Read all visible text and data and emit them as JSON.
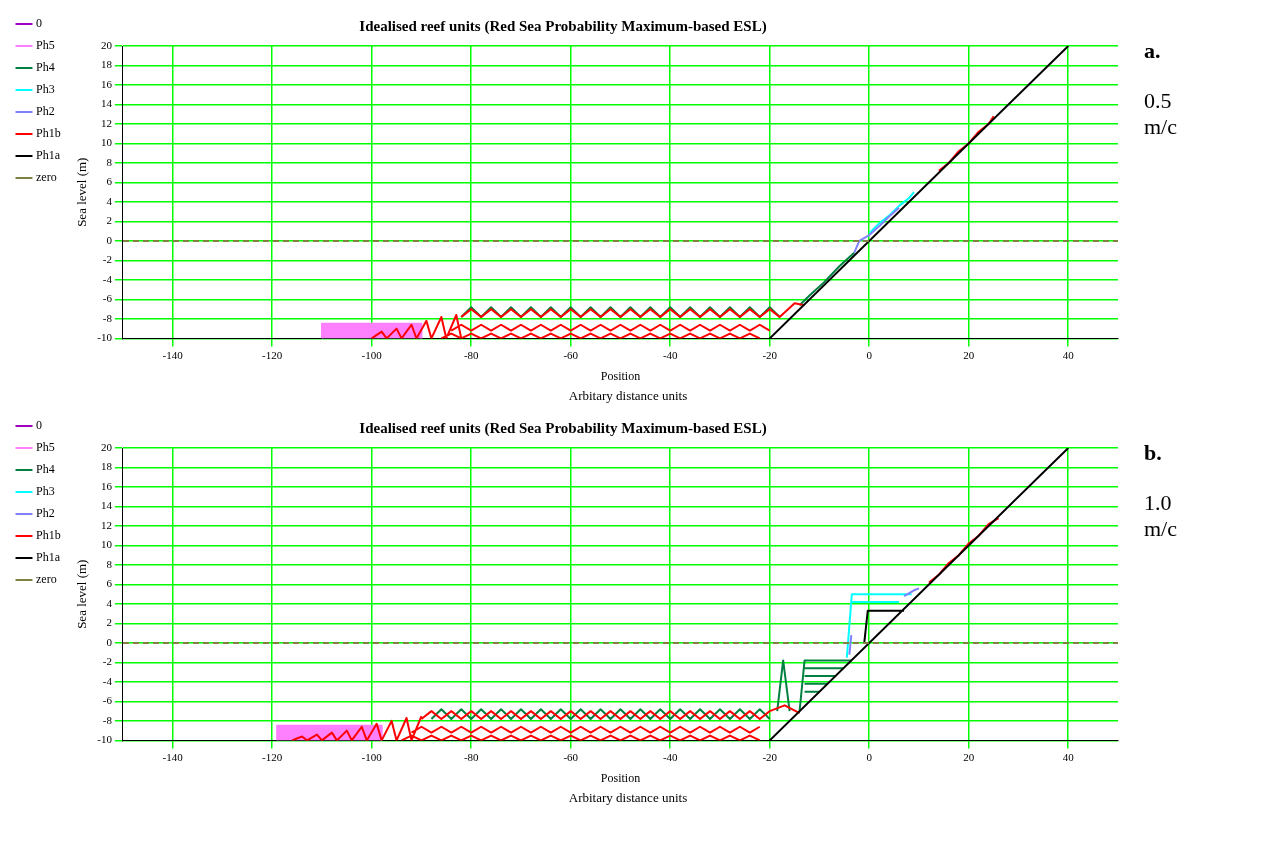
{
  "chart_data": [
    {
      "type": "line",
      "title": "Idealised reef units (Red Sea Probability Maximum-based ESL)",
      "xlabel": "Position",
      "ylabel": "Sea level (m)",
      "annotations": [
        "Arbitary distance units",
        "a.",
        "0.5 m/c"
      ],
      "xlim": [
        -150,
        50
      ],
      "ylim": [
        -10,
        20
      ],
      "xticks": [
        -140,
        -120,
        -100,
        -80,
        -60,
        -40,
        -20,
        0,
        20,
        40
      ],
      "yticks": [
        -10,
        -8,
        -6,
        -4,
        -2,
        0,
        2,
        4,
        6,
        8,
        10,
        12,
        14,
        16,
        18,
        20
      ],
      "grid": true,
      "legend": "left",
      "marker": "none",
      "series": [
        {
          "name": "0",
          "color": "#a000c0",
          "line_style": "dotted"
        },
        {
          "name": "Ph5",
          "type": "area",
          "color": "#ff80ff",
          "x": [
            -110,
            -110,
            -106,
            -102,
            -98,
            -94,
            -90,
            -90
          ],
          "values": [
            -10,
            -8.5,
            -8.5,
            -8.5,
            -8.5,
            -8.5,
            -8.5,
            -10
          ]
        },
        {
          "name": "Ph4",
          "color": "#008040",
          "x": [
            -82,
            -80,
            -78,
            -76,
            -74,
            -72,
            -70,
            -68,
            -66,
            -64,
            -62,
            -60,
            -58,
            -56,
            -54,
            -52,
            -50,
            -48,
            -46,
            -44,
            -42,
            -40,
            -38,
            -36,
            -34,
            -32,
            -30,
            -28,
            -26,
            -24,
            -22,
            -20,
            -18,
            null,
            -14,
            -12,
            -9,
            -6,
            -3
          ],
          "values": [
            -7.8,
            -6.8,
            -7.8,
            -6.8,
            -7.8,
            -6.8,
            -7.8,
            -6.8,
            -7.8,
            -6.8,
            -7.8,
            -6.8,
            -7.8,
            -6.8,
            -7.8,
            -6.8,
            -7.8,
            -6.8,
            -7.8,
            -6.8,
            -7.8,
            -6.8,
            -7.8,
            -6.8,
            -7.8,
            -6.8,
            -7.8,
            -6.8,
            -7.8,
            -6.8,
            -7.8,
            -6.8,
            -7.8,
            null,
            -6.6,
            -5.6,
            -4.2,
            -2.6,
            -1.2
          ]
        },
        {
          "name": "Ph3",
          "color": "#00ffff",
          "x": [
            0,
            2,
            4,
            6,
            8,
            9
          ],
          "values": [
            0.8,
            1.8,
            2.6,
            3.6,
            4.4,
            5
          ]
        },
        {
          "name": "Ph2",
          "color": "#8080ff",
          "x": [
            -3,
            -2,
            0,
            2,
            4,
            6
          ],
          "values": [
            -1.2,
            0,
            0.6,
            1.5,
            2.5,
            3.4
          ]
        },
        {
          "name": "Ph1b",
          "color": "#ff0000",
          "x": [
            -100,
            -98,
            -97,
            -95,
            -94,
            -92,
            -91,
            -89,
            -88,
            -86,
            -85,
            -83,
            -82,
            null,
            -82,
            -80,
            -78,
            -76,
            -74,
            -72,
            -70,
            -68,
            -66,
            -64,
            -62,
            -60,
            -58,
            -56,
            -54,
            -52,
            -50,
            -48,
            -46,
            -44,
            -42,
            -40,
            -38,
            -36,
            -34,
            -32,
            -30,
            -28,
            -26,
            -24,
            -22,
            -20,
            -18,
            -15,
            -13,
            null,
            -84,
            -82,
            -80,
            -78,
            -76,
            -74,
            -72,
            -70,
            -68,
            -66,
            -64,
            -62,
            -60,
            -58,
            -56,
            -54,
            -52,
            -50,
            -48,
            -46,
            -44,
            -42,
            -40,
            -38,
            -36,
            -34,
            -32,
            -30,
            -28,
            -26,
            -24,
            -22,
            -20,
            null,
            -86,
            -84,
            -82,
            -80,
            -78,
            -76,
            -74,
            -72,
            -70,
            -68,
            -66,
            -64,
            -62,
            -60,
            -58,
            -56,
            -54,
            -52,
            -50,
            -48,
            -46,
            -44,
            -42,
            -40,
            -38,
            -36,
            -34,
            -32,
            -30,
            -28,
            -26,
            -24,
            -22,
            null,
            14,
            16,
            18,
            20,
            22,
            24,
            25
          ],
          "values": [
            -10,
            -9.3,
            -10,
            -9,
            -10,
            -8.6,
            -10,
            -8.2,
            -10,
            -7.8,
            -10,
            -7.6,
            -10,
            null,
            -7.8,
            -7,
            -7.8,
            -7,
            -7.8,
            -7,
            -7.8,
            -7,
            -7.8,
            -7,
            -7.8,
            -7,
            -7.8,
            -7,
            -7.8,
            -7,
            -7.8,
            -7,
            -7.8,
            -7,
            -7.8,
            -7,
            -7.8,
            -7,
            -7.8,
            -7,
            -7.8,
            -7,
            -7.8,
            -7,
            -7.8,
            -7,
            -7.8,
            -6.4,
            -6.6,
            null,
            -9.2,
            -8.6,
            -9.2,
            -8.6,
            -9.2,
            -8.6,
            -9.2,
            -8.6,
            -9.2,
            -8.6,
            -9.2,
            -8.6,
            -9.2,
            -8.6,
            -9.2,
            -8.6,
            -9.2,
            -8.6,
            -9.2,
            -8.6,
            -9.2,
            -8.6,
            -9.2,
            -8.6,
            -9.2,
            -8.6,
            -9.2,
            -8.6,
            -9.2,
            -8.6,
            -9.2,
            -8.6,
            -9.2,
            null,
            -10,
            -9.5,
            -10,
            -9.5,
            -10,
            -9.5,
            -10,
            -9.5,
            -10,
            -9.5,
            -10,
            -9.5,
            -10,
            -9.5,
            -10,
            -9.5,
            -10,
            -9.5,
            -10,
            -9.5,
            -10,
            -9.5,
            -10,
            -9.5,
            -10,
            -9.5,
            -10,
            -9.5,
            -10,
            -9.5,
            -10,
            -9.5,
            -10,
            null,
            7.2,
            8,
            9.2,
            10,
            11.2,
            12,
            12.8
          ]
        },
        {
          "name": "Ph1a",
          "color": "#000000",
          "x": [
            -20,
            40
          ],
          "values": [
            -10,
            20
          ]
        },
        {
          "name": "zero",
          "color": "#808040",
          "line_style": "dashed",
          "x": [
            -150,
            50
          ],
          "values": [
            0,
            0
          ]
        }
      ]
    },
    {
      "type": "line",
      "title": "Idealised reef units (Red Sea Probability Maximum-based ESL)",
      "xlabel": "Position",
      "ylabel": "Sea level (m)",
      "annotations": [
        "Arbitary distance units",
        "b.",
        "1.0 m/c"
      ],
      "xlim": [
        -150,
        50
      ],
      "ylim": [
        -10,
        20
      ],
      "xticks": [
        -140,
        -120,
        -100,
        -80,
        -60,
        -40,
        -20,
        0,
        20,
        40
      ],
      "yticks": [
        -10,
        -8,
        -6,
        -4,
        -2,
        0,
        2,
        4,
        6,
        8,
        10,
        12,
        14,
        16,
        18,
        20
      ],
      "grid": true,
      "legend": "left",
      "marker": "none",
      "series": [
        {
          "name": "0",
          "color": "#a000c0",
          "line_style": "dotted"
        },
        {
          "name": "Ph5",
          "type": "area",
          "color": "#ff80ff",
          "x": [
            -119,
            -119,
            -115,
            -111,
            -107,
            -103,
            -100,
            -98,
            -98
          ],
          "values": [
            -10,
            -8.5,
            -8.5,
            -8.5,
            -8.5,
            -8.5,
            -8.5,
            -8.5,
            -10
          ]
        },
        {
          "name": "Ph4",
          "color": "#008040",
          "x": [
            -88,
            -86,
            -84,
            -82,
            -80,
            -78,
            -76,
            -74,
            -72,
            -70,
            -68,
            -66,
            -64,
            -62,
            -60,
            -58,
            -56,
            -54,
            -52,
            -50,
            -48,
            -46,
            -44,
            -42,
            -40,
            -38,
            -36,
            -34,
            -32,
            -30,
            -28,
            -26,
            -24,
            -22,
            -20,
            null,
            -18.5,
            -17.3,
            -16,
            null,
            -14,
            -13,
            -3.6,
            null,
            -13,
            -5.2,
            null,
            -13,
            -6.8,
            null,
            -13,
            -8.4,
            null,
            -13,
            -10
          ],
          "values": [
            -7.8,
            -6.8,
            -7.8,
            -6.8,
            -7.8,
            -6.8,
            -7.8,
            -6.8,
            -7.8,
            -6.8,
            -7.8,
            -6.8,
            -7.8,
            -6.8,
            -7.8,
            -6.8,
            -7.8,
            -6.8,
            -7.8,
            -6.8,
            -7.8,
            -6.8,
            -7.8,
            -6.8,
            -7.8,
            -6.8,
            -7.8,
            -6.8,
            -7.8,
            -6.8,
            -7.8,
            -6.8,
            -7.8,
            -6.8,
            -7.8,
            null,
            -7,
            -1.8,
            -7,
            null,
            -7,
            -1.8,
            -1.8,
            null,
            -2.6,
            -2.6,
            null,
            -3.4,
            -3.4,
            null,
            -4.2,
            -4.2,
            null,
            -5,
            -5
          ]
        },
        {
          "name": "Ph3",
          "color": "#00ffff",
          "x": [
            -4.5,
            -3.5,
            8.5,
            null,
            -3.5,
            6
          ],
          "values": [
            -1.5,
            5,
            5,
            null,
            4.2,
            4.2
          ]
        },
        {
          "name": "Ph2",
          "color": "#8080ff",
          "x": [
            -4,
            -3.6,
            null,
            7,
            9,
            10
          ],
          "values": [
            -1.2,
            0.8,
            null,
            4.8,
            5.4,
            5.6
          ]
        },
        {
          "name": "Ph1b",
          "color": "#ff0000",
          "x": [
            -116,
            -114,
            -113,
            -111,
            -110,
            -108,
            -107,
            -105,
            -104,
            -102,
            -101,
            -99,
            -98,
            -96,
            -95,
            -93,
            -92,
            -90,
            null,
            -90,
            -88,
            -86,
            -84,
            -82,
            -80,
            -78,
            -76,
            -74,
            -72,
            -70,
            -68,
            -66,
            -64,
            -62,
            -60,
            -58,
            -56,
            -54,
            -52,
            -50,
            -48,
            -46,
            -44,
            -42,
            -40,
            -38,
            -36,
            -34,
            -32,
            -30,
            -28,
            -26,
            -24,
            -22,
            -20,
            -17,
            -14,
            null,
            -92,
            -90,
            -88,
            -86,
            -84,
            -82,
            -80,
            -78,
            -76,
            -74,
            -72,
            -70,
            -68,
            -66,
            -64,
            -62,
            -60,
            -58,
            -56,
            -54,
            -52,
            -50,
            -48,
            -46,
            -44,
            -42,
            -40,
            -38,
            -36,
            -34,
            -32,
            -30,
            -28,
            -26,
            -24,
            -22,
            null,
            -94,
            -92,
            -90,
            -88,
            -86,
            -84,
            -82,
            -80,
            -78,
            -76,
            -74,
            -72,
            -70,
            -68,
            -66,
            -64,
            -62,
            -60,
            -58,
            -56,
            -54,
            -52,
            -50,
            -48,
            -46,
            -44,
            -42,
            -40,
            -38,
            -36,
            -34,
            -32,
            -30,
            -28,
            -26,
            -24,
            -22,
            null,
            12,
            14,
            16,
            18,
            20,
            22,
            24,
            26
          ],
          "values": [
            -10,
            -9.6,
            -10,
            -9.4,
            -10,
            -9.2,
            -10,
            -9,
            -10,
            -8.6,
            -10,
            -8.3,
            -10,
            -8,
            -10,
            -7.7,
            -10,
            -7.5,
            null,
            -7.8,
            -7,
            -7.8,
            -7,
            -7.8,
            -7,
            -7.8,
            -7,
            -7.8,
            -7,
            -7.8,
            -7,
            -7.8,
            -7,
            -7.8,
            -7,
            -7.8,
            -7,
            -7.8,
            -7,
            -7.8,
            -7,
            -7.8,
            -7,
            -7.8,
            -7,
            -7.8,
            -7,
            -7.8,
            -7,
            -7.8,
            -7,
            -7.8,
            -7,
            -7.8,
            -7,
            -6.4,
            -7.2,
            null,
            -9.2,
            -8.6,
            -9.2,
            -8.6,
            -9.2,
            -8.6,
            -9.2,
            -8.6,
            -9.2,
            -8.6,
            -9.2,
            -8.6,
            -9.2,
            -8.6,
            -9.2,
            -8.6,
            -9.2,
            -8.6,
            -9.2,
            -8.6,
            -9.2,
            -8.6,
            -9.2,
            -8.6,
            -9.2,
            -8.6,
            -9.2,
            -8.6,
            -9.2,
            -8.6,
            -9.2,
            -8.6,
            -9.2,
            -8.6,
            -9.2,
            -8.6,
            null,
            -10,
            -9.5,
            -10,
            -9.5,
            -10,
            -9.5,
            -10,
            -9.5,
            -10,
            -9.5,
            -10,
            -9.5,
            -10,
            -9.5,
            -10,
            -9.5,
            -10,
            -9.5,
            -10,
            -9.5,
            -10,
            -9.5,
            -10,
            -9.5,
            -10,
            -9.5,
            -10,
            -9.5,
            -10,
            -9.5,
            -10,
            -9.5,
            -10,
            -9.5,
            -10,
            -9.5,
            -10,
            null,
            6.2,
            7,
            8.2,
            9,
            10.2,
            11,
            12.2,
            12.8
          ]
        },
        {
          "name": "Ph1a",
          "color": "#000000",
          "x": [
            -20,
            40,
            null,
            -1,
            -0.3,
            7
          ],
          "values": [
            -10,
            20,
            null,
            0,
            3.3,
            3.3
          ]
        },
        {
          "name": "zero",
          "color": "#808040",
          "line_style": "dashed",
          "x": [
            -150,
            50
          ],
          "values": [
            0,
            0
          ]
        }
      ]
    }
  ]
}
